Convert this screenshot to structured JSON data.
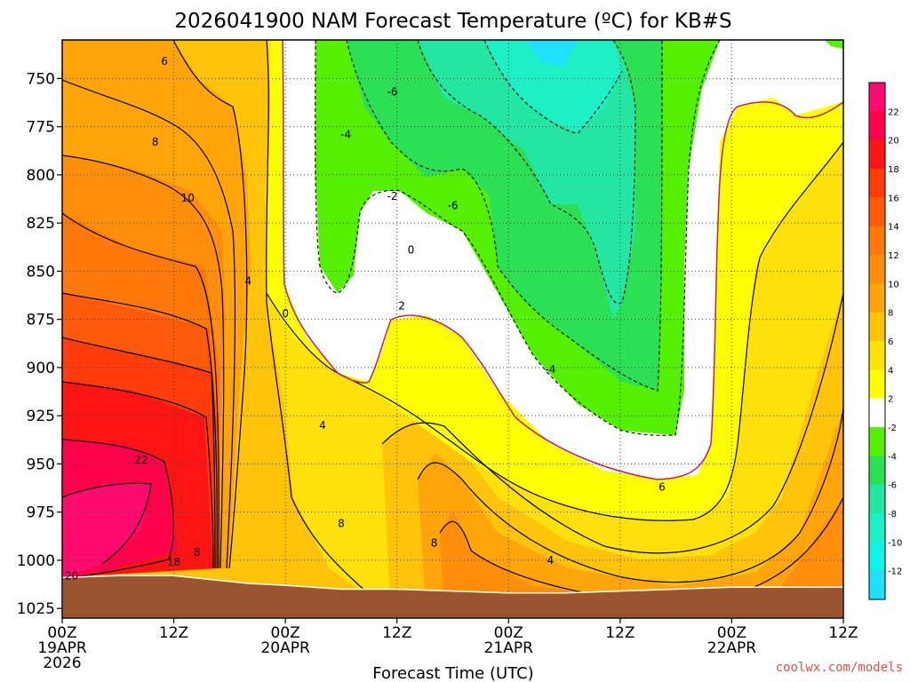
{
  "chart_data": {
    "type": "heatmap",
    "title": "2026041900 NAM Forecast Temperature (ºC) for KB#S",
    "xlabel": "Forecast Time (UTC)",
    "ylabel": "",
    "y_axis": {
      "ticks": [
        750,
        775,
        800,
        825,
        850,
        875,
        900,
        925,
        950,
        975,
        1000,
        1025
      ],
      "range_hPa": [
        730,
        1030
      ],
      "scale": "pressure, increasing downward"
    },
    "x_axis": {
      "range": [
        "2026-04-19 00Z",
        "2026-04-22 12Z"
      ],
      "ticks": [
        {
          "label": "00Z",
          "sub": "19APR",
          "sub2": "2026"
        },
        {
          "label": "12Z",
          "sub": "",
          "sub2": ""
        },
        {
          "label": "00Z",
          "sub": "20APR",
          "sub2": ""
        },
        {
          "label": "12Z",
          "sub": "",
          "sub2": ""
        },
        {
          "label": "00Z",
          "sub": "21APR",
          "sub2": ""
        },
        {
          "label": "12Z",
          "sub": "",
          "sub2": ""
        },
        {
          "label": "00Z",
          "sub": "22APR",
          "sub2": ""
        },
        {
          "label": "12Z",
          "sub": "",
          "sub2": ""
        }
      ]
    },
    "grid": true,
    "colorbar": {
      "unit": "ºC",
      "labels": [
        "22",
        "20",
        "18",
        "16",
        "14",
        "12",
        "10",
        "8",
        "6",
        "4",
        "2",
        "-2",
        "-4",
        "-6",
        "-8",
        "-10",
        "-12"
      ],
      "bins": [
        {
          "min": 22,
          "max": 24,
          "color": "#ff0a6e"
        },
        {
          "min": 20,
          "max": 22,
          "color": "#ff004a"
        },
        {
          "min": 18,
          "max": 20,
          "color": "#ff1414"
        },
        {
          "min": 16,
          "max": 18,
          "color": "#ff3c0a"
        },
        {
          "min": 14,
          "max": 16,
          "color": "#ff5a0a"
        },
        {
          "min": 12,
          "max": 14,
          "color": "#ff780a"
        },
        {
          "min": 10,
          "max": 12,
          "color": "#ff8f0a"
        },
        {
          "min": 8,
          "max": 10,
          "color": "#ffa50a"
        },
        {
          "min": 6,
          "max": 8,
          "color": "#ffc30a"
        },
        {
          "min": 4,
          "max": 6,
          "color": "#ffe10a"
        },
        {
          "min": 2,
          "max": 4,
          "color": "#ffff00"
        },
        {
          "min": -2,
          "max": 2,
          "color": "#ffffff"
        },
        {
          "min": -4,
          "max": -2,
          "color": "#54f000"
        },
        {
          "min": -6,
          "max": -4,
          "color": "#2be054"
        },
        {
          "min": -8,
          "max": -6,
          "color": "#24e6a3"
        },
        {
          "min": -10,
          "max": -8,
          "color": "#1cf0c4"
        },
        {
          "min": -12,
          "max": -10,
          "color": "#12f3e8"
        },
        {
          "min": -14,
          "max": -12,
          "color": "#20e0ff"
        }
      ]
    },
    "contour_labels": [
      {
        "text": "6",
        "hour": 11,
        "hPa": 741
      },
      {
        "text": "8",
        "hour": 10,
        "hPa": 783
      },
      {
        "text": "10",
        "hour": 13.5,
        "hPa": 812
      },
      {
        "text": "22",
        "hour": 8.5,
        "hPa": 948
      },
      {
        "text": "18",
        "hour": 12,
        "hPa": 1001
      },
      {
        "text": "20",
        "hour": 1,
        "hPa": 1008
      },
      {
        "text": "8",
        "hour": 14.5,
        "hPa": 996
      },
      {
        "text": "4",
        "hour": 20,
        "hPa": 855
      },
      {
        "text": "0",
        "hour": 24,
        "hPa": 872
      },
      {
        "text": "4",
        "hour": 28,
        "hPa": 930
      },
      {
        "text": "-4",
        "hour": 30.5,
        "hPa": 779
      },
      {
        "text": "-6",
        "hour": 35.5,
        "hPa": 757
      },
      {
        "text": "-2",
        "hour": 35.5,
        "hPa": 811
      },
      {
        "text": "0",
        "hour": 37.5,
        "hPa": 839
      },
      {
        "text": "2",
        "hour": 36.5,
        "hPa": 868
      },
      {
        "text": "8",
        "hour": 30,
        "hPa": 981
      },
      {
        "text": "8",
        "hour": 40,
        "hPa": 991
      },
      {
        "text": "-6",
        "hour": 42,
        "hPa": 816
      },
      {
        "text": "-4",
        "hour": 52.5,
        "hPa": 901
      },
      {
        "text": "4",
        "hour": 52.5,
        "hPa": 1000
      },
      {
        "text": "6",
        "hour": 64.5,
        "hPa": 962
      }
    ],
    "surface_pressure_hPa": [
      [
        0,
        1009
      ],
      [
        6,
        1008
      ],
      [
        12,
        1008
      ],
      [
        16,
        1010
      ],
      [
        20,
        1012
      ],
      [
        24,
        1013
      ],
      [
        30,
        1015
      ],
      [
        36,
        1015
      ],
      [
        42,
        1016
      ],
      [
        48,
        1017
      ],
      [
        54,
        1017
      ],
      [
        60,
        1016
      ],
      [
        66,
        1015
      ],
      [
        72,
        1014
      ],
      [
        84,
        1014
      ]
    ]
  },
  "credit": "coolwx.com/models",
  "credit_color": "#e05050",
  "ground_color": "#9b5430"
}
